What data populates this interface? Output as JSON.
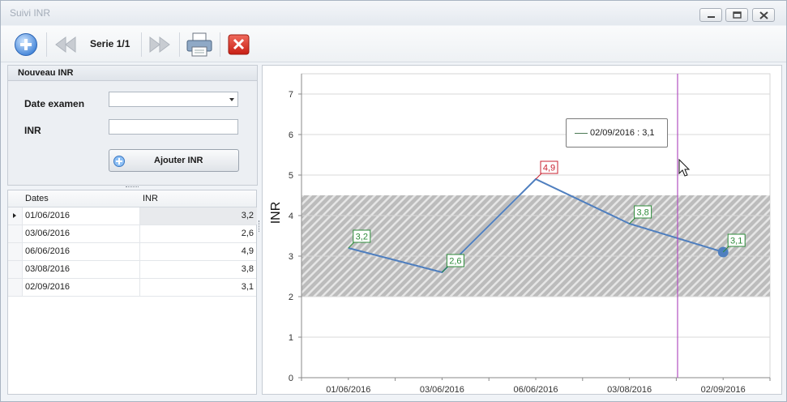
{
  "window": {
    "title": "Suivi INR"
  },
  "toolbar": {
    "series_label": "Serie 1/1"
  },
  "form": {
    "group_title": "Nouveau INR",
    "date_label": "Date examen",
    "date_value": "",
    "inr_label": "INR",
    "inr_value": "",
    "add_button_label": "Ajouter INR"
  },
  "table": {
    "columns": [
      "Dates",
      "INR"
    ],
    "rows": [
      {
        "date": "01/06/2016",
        "inr": "3,2"
      },
      {
        "date": "03/06/2016",
        "inr": "2,6"
      },
      {
        "date": "06/06/2016",
        "inr": "4,9"
      },
      {
        "date": "03/08/2016",
        "inr": "3,8"
      },
      {
        "date": "02/09/2016",
        "inr": "3,1"
      }
    ],
    "selected_index": 0
  },
  "chart_data": {
    "type": "line",
    "categories": [
      "01/06/2016",
      "03/06/2016",
      "06/06/2016",
      "03/08/2016",
      "02/09/2016"
    ],
    "values": [
      3.2,
      2.6,
      4.9,
      3.8,
      3.1
    ],
    "data_labels": [
      "3,2",
      "2,6",
      "4,9",
      "3,8",
      "3,1"
    ],
    "ylabel": "INR",
    "ylim": [
      0,
      7.5
    ],
    "yticks": [
      0,
      1,
      2,
      3,
      4,
      5,
      6,
      7
    ],
    "target_band": [
      2,
      4.5
    ],
    "grid": true,
    "highlighted_index": 4,
    "tooltip_text": "02/09/2016 : 3,1",
    "colors": {
      "line": "#4f7fbf",
      "label_normal": "#2e8b3a",
      "label_high": "#c8202f",
      "cursor": "#b24fc0",
      "band": "#bcbcbc"
    }
  }
}
